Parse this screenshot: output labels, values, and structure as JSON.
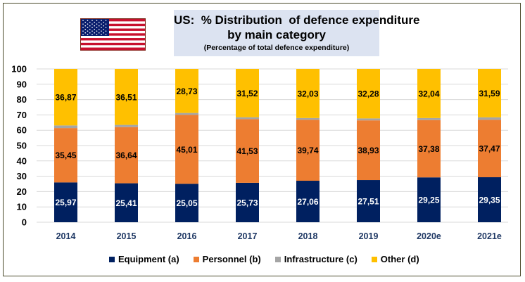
{
  "chart_data": {
    "type": "bar",
    "stacked": true,
    "title": "US:  % Distribution  of defence expenditure\nby main category",
    "subtitle": "(Percentage of total defence expenditure)",
    "xlabel": "",
    "ylabel": "",
    "ylim": [
      0,
      100
    ],
    "yticks": [
      0,
      10,
      20,
      30,
      40,
      50,
      60,
      70,
      80,
      90,
      100
    ],
    "grid": true,
    "legend_position": "bottom",
    "categories": [
      "2014",
      "2015",
      "2016",
      "2017",
      "2018",
      "2019",
      "2020e",
      "2021e"
    ],
    "series": [
      {
        "name": "Equipment (a)",
        "color": "#002060",
        "label_color": "#ffffff",
        "show_labels": true,
        "values": [
          25.97,
          25.41,
          25.05,
          25.73,
          27.06,
          27.51,
          29.25,
          29.35
        ],
        "labels": [
          "25,97",
          "25,41",
          "25,05",
          "25,73",
          "27,06",
          "27,51",
          "29,25",
          "29,35"
        ]
      },
      {
        "name": "Personnel (b)",
        "color": "#ed7d31",
        "label_color": "#000000",
        "show_labels": true,
        "values": [
          35.45,
          36.64,
          45.01,
          41.53,
          39.74,
          38.93,
          37.38,
          37.47
        ],
        "labels": [
          "35,45",
          "36,64",
          "45,01",
          "41,53",
          "39,74",
          "38,93",
          "37,38",
          "37,47"
        ]
      },
      {
        "name": "Infrastructure (c)",
        "color": "#a5a5a5",
        "label_color": "#000000",
        "show_labels": false,
        "values": [
          1.71,
          1.44,
          1.21,
          1.22,
          1.17,
          1.28,
          1.33,
          1.59
        ],
        "labels": []
      },
      {
        "name": "Other (d)",
        "color": "#ffc000",
        "label_color": "#000000",
        "show_labels": true,
        "values": [
          36.87,
          36.51,
          28.73,
          31.52,
          32.03,
          32.28,
          32.04,
          31.59
        ],
        "labels": [
          "36,87",
          "36,51",
          "28,73",
          "31,52",
          "32,03",
          "32,28",
          "32,04",
          "31,59"
        ]
      }
    ]
  },
  "flag": {
    "name": "United States flag",
    "colors": {
      "red": "#c8102e",
      "white": "#ffffff",
      "blue": "#0a1f6e"
    }
  }
}
